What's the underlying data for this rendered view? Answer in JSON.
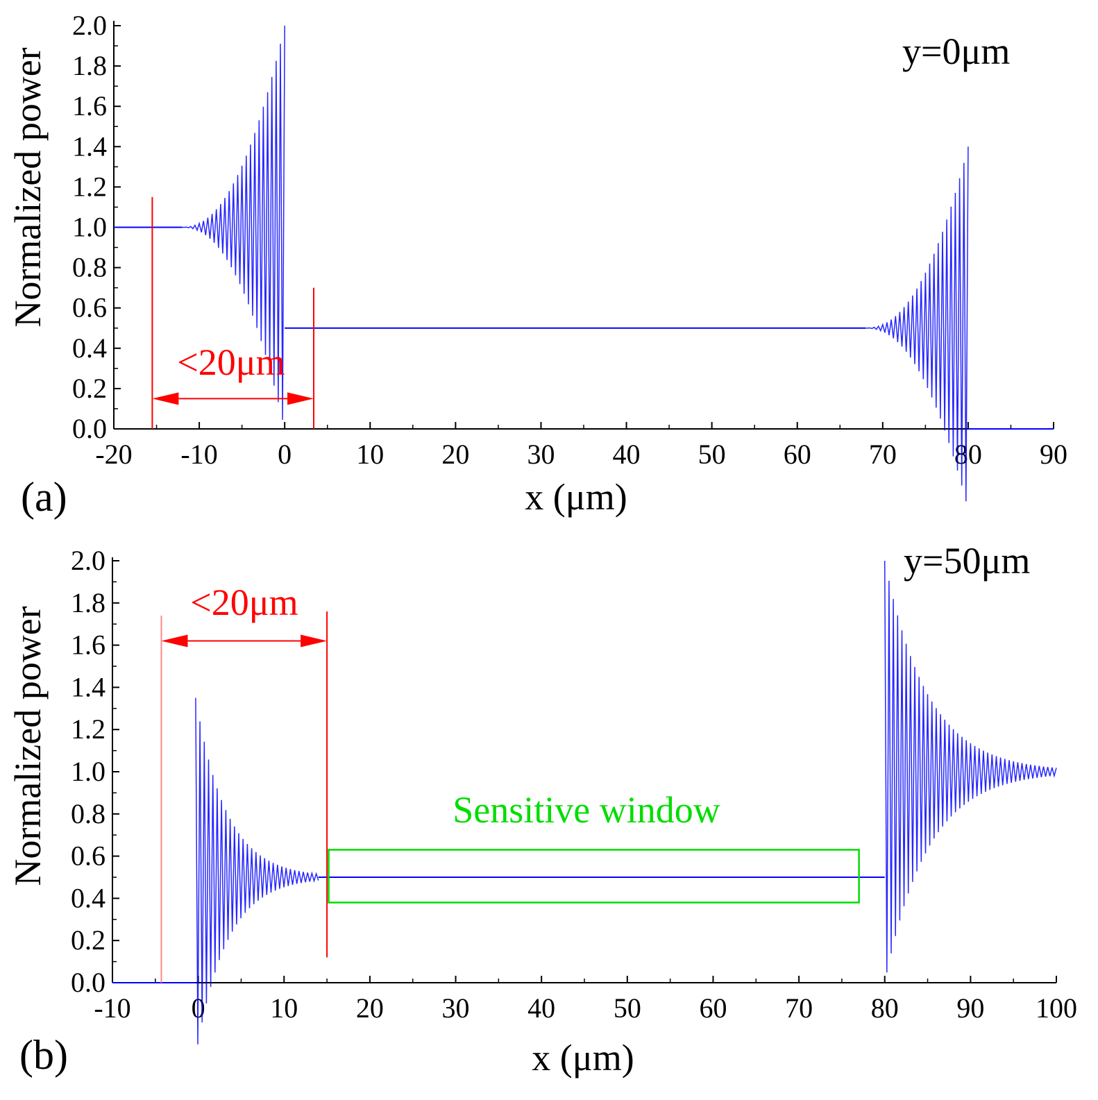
{
  "chart_data": [
    {
      "type": "line",
      "panel_label": "(a)",
      "annotation": "y=0μm",
      "xlabel": "x (μm)",
      "ylabel": "Normalized power",
      "xlim": [
        -20,
        90
      ],
      "ylim": [
        0.0,
        2.0
      ],
      "xticks": [
        "-20",
        "-10",
        "0",
        "10",
        "20",
        "30",
        "40",
        "50",
        "60",
        "70",
        "80",
        "90"
      ],
      "yticks": [
        "0.0",
        "0.2",
        "0.4",
        "0.6",
        "0.8",
        "1.0",
        "1.2",
        "1.4",
        "1.6",
        "1.8",
        "2.0"
      ],
      "series": [
        {
          "name": "normalized power",
          "color": "#0000ff",
          "segments": [
            {
              "x0": -20,
              "x1": -12,
              "kind": "flat",
              "level": 1.0
            },
            {
              "x0": -12,
              "x1": 0,
              "kind": "growing-oscillation",
              "center": 1.0,
              "amp_start": 0.0,
              "amp_end": 1.0
            },
            {
              "x0": 0,
              "x1": 68,
              "kind": "flat",
              "level": 0.5
            },
            {
              "x0": 68,
              "x1": 80,
              "kind": "growing-oscillation",
              "center": 0.5,
              "amp_start": 0.0,
              "amp_end": 0.9
            },
            {
              "x0": 80,
              "x1": 90,
              "kind": "flat",
              "level": 0.0
            }
          ]
        }
      ],
      "markers": [
        {
          "type": "vline",
          "x": -15.5,
          "y0": 0.0,
          "y1": 1.15,
          "color": "#ff0000"
        },
        {
          "type": "vline",
          "x": 3.4,
          "y0": 0.0,
          "y1": 0.7,
          "color": "#ff0000"
        },
        {
          "type": "arrow",
          "x0": -15.5,
          "x1": 3.4,
          "y": 0.15,
          "color": "#ff0000",
          "label": "<20μm"
        }
      ]
    },
    {
      "type": "line",
      "panel_label": "(b)",
      "annotation": "y=50μm",
      "xlabel": "x (μm)",
      "ylabel": "Normalized power",
      "xlim": [
        -10,
        100
      ],
      "ylim": [
        0.0,
        2.0
      ],
      "xticks": [
        "-10",
        "0",
        "10",
        "20",
        "30",
        "40",
        "50",
        "60",
        "70",
        "80",
        "90",
        "100"
      ],
      "yticks": [
        "0.0",
        "0.2",
        "0.4",
        "0.6",
        "0.8",
        "1.0",
        "1.2",
        "1.4",
        "1.6",
        "1.8",
        "2.0"
      ],
      "series": [
        {
          "name": "normalized power",
          "color": "#0000ff",
          "segments": [
            {
              "x0": -10,
              "x1": -0.3,
              "kind": "flat",
              "level": 0.0
            },
            {
              "x0": -0.3,
              "x1": 14,
              "kind": "decaying-oscillation",
              "center": 0.5,
              "amp_start": 0.85,
              "amp_end": 0.0
            },
            {
              "x0": 14,
              "x1": 80,
              "kind": "flat",
              "level": 0.5
            },
            {
              "x0": 80,
              "x1": 100,
              "kind": "decaying-oscillation",
              "center": 1.0,
              "amp_start": 1.0,
              "amp_end": 0.0
            }
          ]
        }
      ],
      "markers": [
        {
          "type": "vline",
          "x": -4.3,
          "y0": 0.0,
          "y1": 1.74,
          "color": "#ff8888"
        },
        {
          "type": "vline",
          "x": 15,
          "y0": 0.12,
          "y1": 1.76,
          "color": "#ff0000"
        },
        {
          "type": "arrow",
          "x0": -4.3,
          "x1": 15,
          "y": 1.62,
          "color": "#ff0000",
          "label": "<20μm"
        },
        {
          "type": "box",
          "x0": 15.2,
          "x1": 77,
          "y0": 0.38,
          "y1": 0.63,
          "color": "#00dd00",
          "label": "Sensitive window"
        }
      ]
    }
  ]
}
